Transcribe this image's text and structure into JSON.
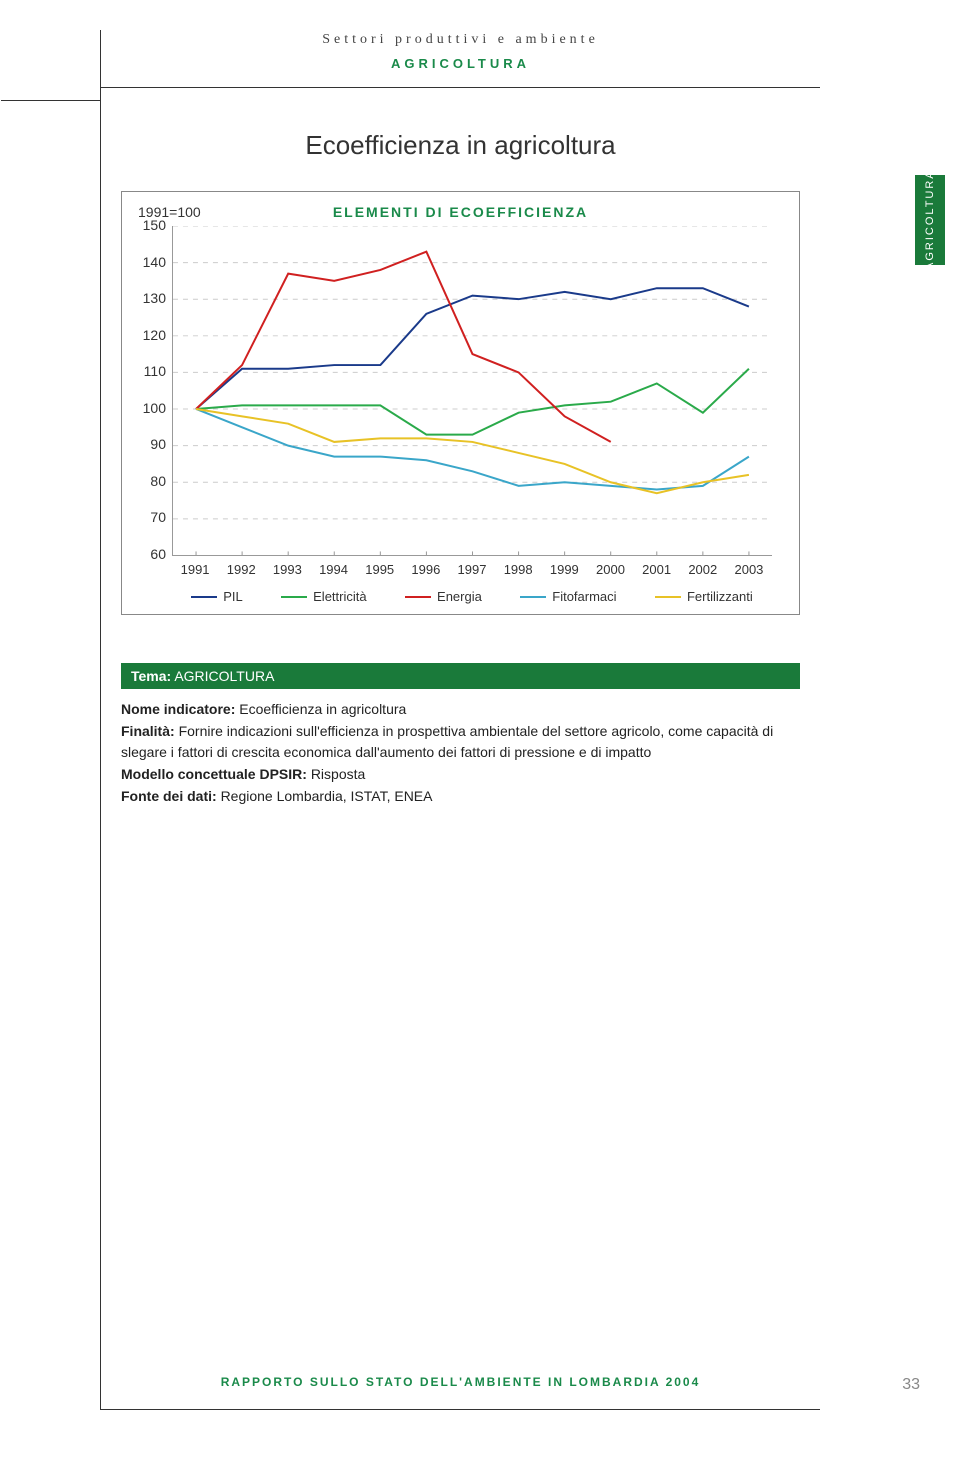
{
  "header": {
    "section": "Settori produttivi e ambiente",
    "subsection": "AGRICOLTURA",
    "title": "Ecoefficienza in agricoltura",
    "side_tab": "AGRICOLTURA"
  },
  "chart": {
    "type": "line",
    "baseline_label": "1991=100",
    "title": "ELEMENTI DI ECOEFFICIENZA",
    "background_color": "#ffffff",
    "grid_color": "#cccccc",
    "axis_color": "#999999",
    "ylim": [
      60,
      150
    ],
    "yticks": [
      150,
      140,
      130,
      120,
      110,
      100,
      90,
      80,
      70,
      60
    ],
    "xlabels": [
      "1991",
      "1992",
      "1993",
      "1994",
      "1995",
      "1996",
      "1997",
      "1998",
      "1999",
      "2000",
      "2001",
      "2002",
      "2003"
    ],
    "line_width": 2,
    "tick_fontsize": 13,
    "title_fontsize": 14,
    "series": [
      {
        "name": "PIL",
        "color": "#1a3a8a",
        "values": [
          100,
          111,
          111,
          112,
          112,
          126,
          131,
          130,
          132,
          130,
          133,
          133,
          128
        ]
      },
      {
        "name": "Elettricità",
        "color": "#2aaa4a",
        "values": [
          100,
          101,
          101,
          101,
          101,
          93,
          93,
          99,
          101,
          102,
          107,
          99,
          111
        ]
      },
      {
        "name": "Energia",
        "color": "#d02020",
        "values": [
          100,
          112,
          137,
          135,
          138,
          143,
          115,
          110,
          98,
          91,
          null,
          null,
          null
        ]
      },
      {
        "name": "Fitofarmaci",
        "color": "#3aa6c9",
        "values": [
          100,
          95,
          90,
          87,
          87,
          86,
          83,
          79,
          80,
          79,
          78,
          79,
          87
        ]
      },
      {
        "name": "Fertilizzanti",
        "color": "#e8c226",
        "values": [
          100,
          98,
          96,
          91,
          92,
          92,
          91,
          88,
          85,
          80,
          77,
          80,
          82
        ]
      }
    ]
  },
  "tema": {
    "label": "Tema:",
    "value": "AGRICOLTURA"
  },
  "meta": {
    "nome_label": "Nome indicatore:",
    "nome_value": "Ecoefficienza in agricoltura",
    "finalita_label": "Finalità:",
    "finalita_value": "Fornire indicazioni sull'efficienza in prospettiva ambientale del settore agricolo, come capacità di slegare i fattori di crescita economica dall'aumento dei fattori di pressione e di impatto",
    "modello_label": "Modello concettuale DPSIR:",
    "modello_value": "Risposta",
    "fonte_label": "Fonte dei dati:",
    "fonte_value": "Regione Lombardia, ISTAT, ENEA"
  },
  "footer": {
    "text": "RAPPORTO SULLO STATO DELL'AMBIENTE IN LOMBARDIA 2004",
    "page_number": "33"
  }
}
